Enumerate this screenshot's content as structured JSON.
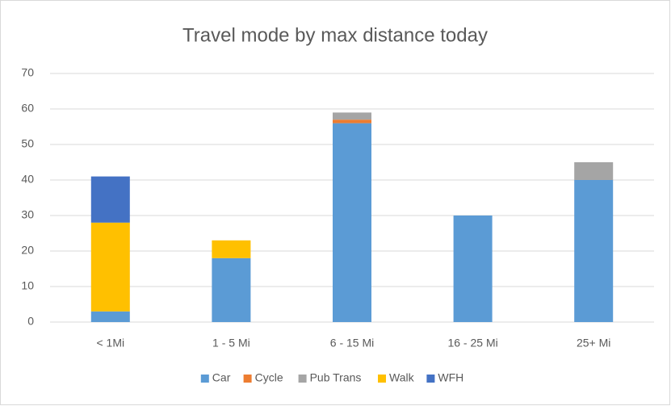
{
  "chart_data": {
    "type": "stacked_bar",
    "title": "Travel mode by max distance today",
    "categories": [
      "< 1Mi",
      "1 - 5 Mi",
      "6 - 15 Mi",
      "16 - 25 Mi",
      "25+ Mi"
    ],
    "series": [
      {
        "name": "Car",
        "color": "#5b9bd5",
        "values": [
          3,
          18,
          56,
          30,
          40
        ]
      },
      {
        "name": "Cycle",
        "color": "#ed7d31",
        "values": [
          0,
          0,
          1,
          0,
          0
        ]
      },
      {
        "name": "Pub Trans",
        "color": "#a5a5a5",
        "values": [
          0,
          0,
          2,
          0,
          5
        ]
      },
      {
        "name": "Walk",
        "color": "#ffc000",
        "values": [
          25,
          5,
          0,
          0,
          0
        ]
      },
      {
        "name": "WFH",
        "color": "#4472c4",
        "values": [
          13,
          0,
          0,
          0,
          0
        ]
      }
    ],
    "ylim": [
      0,
      70
    ],
    "yticks": [
      0,
      10,
      20,
      30,
      40,
      50,
      60,
      70
    ],
    "grid": true,
    "legend": "bottom"
  }
}
